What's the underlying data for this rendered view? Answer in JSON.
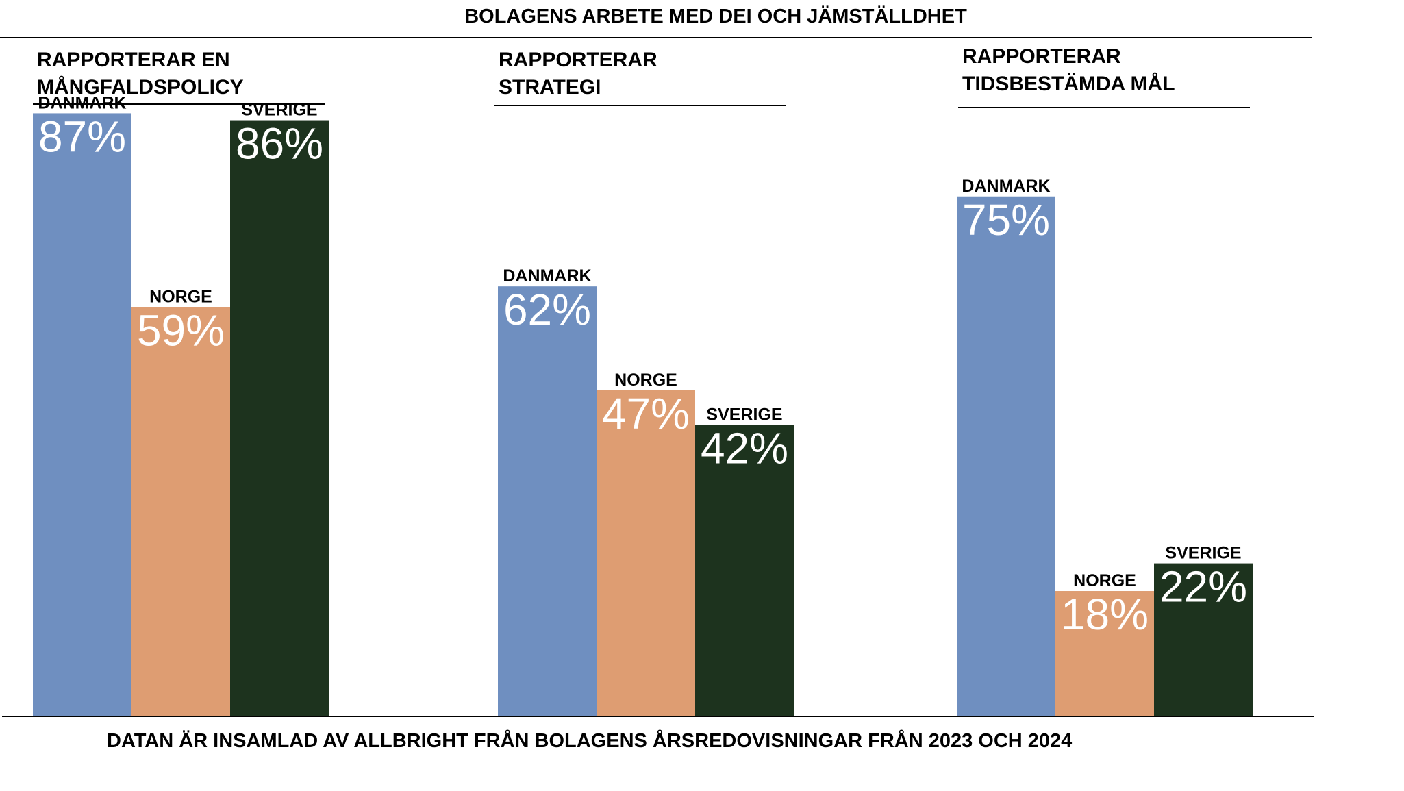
{
  "title": "BOLAGENS ARBETE MED DEI OCH JÄMSTÄLLDHET",
  "footer": "DATAN ÄR INSAMLAD AV ALLBRIGHT FRÅN BOLAGENS ÅRSREDOVISNINGAR FRÅN 2023 OCH 2024",
  "colors": {
    "DANMARK": "#6f8fc0",
    "NORGE": "#de9d72",
    "SVERIGE": "#1d331e"
  },
  "chart_data": {
    "type": "bar",
    "title": "BOLAGENS ARBETE MED DEI OCH JÄMSTÄLLDHET",
    "ylim": [
      0,
      100
    ],
    "unit": "%",
    "grid": false,
    "legend": "none",
    "groups": [
      {
        "label_lines": [
          "RAPPORTERAR EN",
          "MÅNGFALDSPOLICY"
        ],
        "bars": [
          {
            "country": "DANMARK",
            "value": 87,
            "display": "87%"
          },
          {
            "country": "NORGE",
            "value": 59,
            "display": "59%"
          },
          {
            "country": "SVERIGE",
            "value": 86,
            "display": "86%"
          }
        ]
      },
      {
        "label_lines": [
          "RAPPORTERAR",
          "STRATEGI"
        ],
        "bars": [
          {
            "country": "DANMARK",
            "value": 62,
            "display": "62%"
          },
          {
            "country": "NORGE",
            "value": 47,
            "display": "47%"
          },
          {
            "country": "SVERIGE",
            "value": 42,
            "display": "42%"
          }
        ]
      },
      {
        "label_lines": [
          "RAPPORTERAR",
          "TIDSBESTÄMDA MÅL"
        ],
        "bars": [
          {
            "country": "DANMARK",
            "value": 75,
            "display": "75%"
          },
          {
            "country": "NORGE",
            "value": 18,
            "display": "18%"
          },
          {
            "country": "SVERIGE",
            "value": 22,
            "display": "22%"
          }
        ]
      }
    ]
  }
}
